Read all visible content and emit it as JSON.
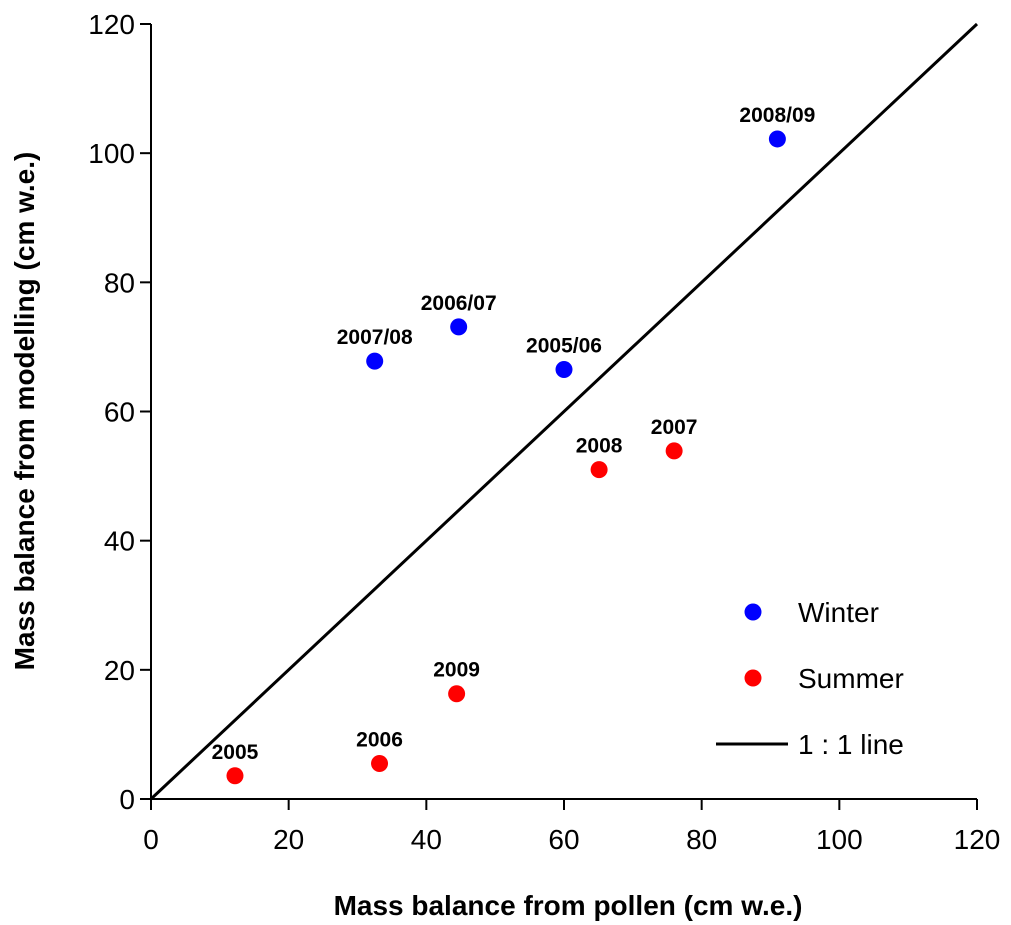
{
  "chart_data": {
    "type": "scatter",
    "xlabel": "Mass balance from pollen (cm w.e.)",
    "ylabel": "Mass balance from modelling (cm w.e.)",
    "xlim": [
      0,
      120
    ],
    "ylim": [
      0,
      120
    ],
    "xticks": [
      0,
      20,
      40,
      60,
      80,
      100,
      120
    ],
    "yticks": [
      0,
      20,
      40,
      60,
      80,
      100,
      120
    ],
    "grid": false,
    "legend_position": "bottom-right",
    "series": [
      {
        "name": "Winter",
        "color": "#0000ff",
        "points": [
          {
            "x": 32.5,
            "y": 67.8,
            "label": "2007/08"
          },
          {
            "x": 44.7,
            "y": 73.1,
            "label": "2006/07"
          },
          {
            "x": 60.0,
            "y": 66.5,
            "label": "2005/06"
          },
          {
            "x": 91.0,
            "y": 102.2,
            "label": "2008/09"
          }
        ]
      },
      {
        "name": "Summer",
        "color": "#ff0000",
        "points": [
          {
            "x": 12.2,
            "y": 3.6,
            "label": "2005"
          },
          {
            "x": 33.2,
            "y": 5.5,
            "label": "2006"
          },
          {
            "x": 44.4,
            "y": 16.3,
            "label": "2009"
          },
          {
            "x": 65.1,
            "y": 51.0,
            "label": "2008"
          },
          {
            "x": 76.0,
            "y": 53.9,
            "label": "2007"
          }
        ]
      }
    ],
    "reference_line": {
      "name": "1 : 1 line",
      "from": [
        0,
        0
      ],
      "to": [
        120,
        120
      ],
      "color": "#000000"
    }
  }
}
